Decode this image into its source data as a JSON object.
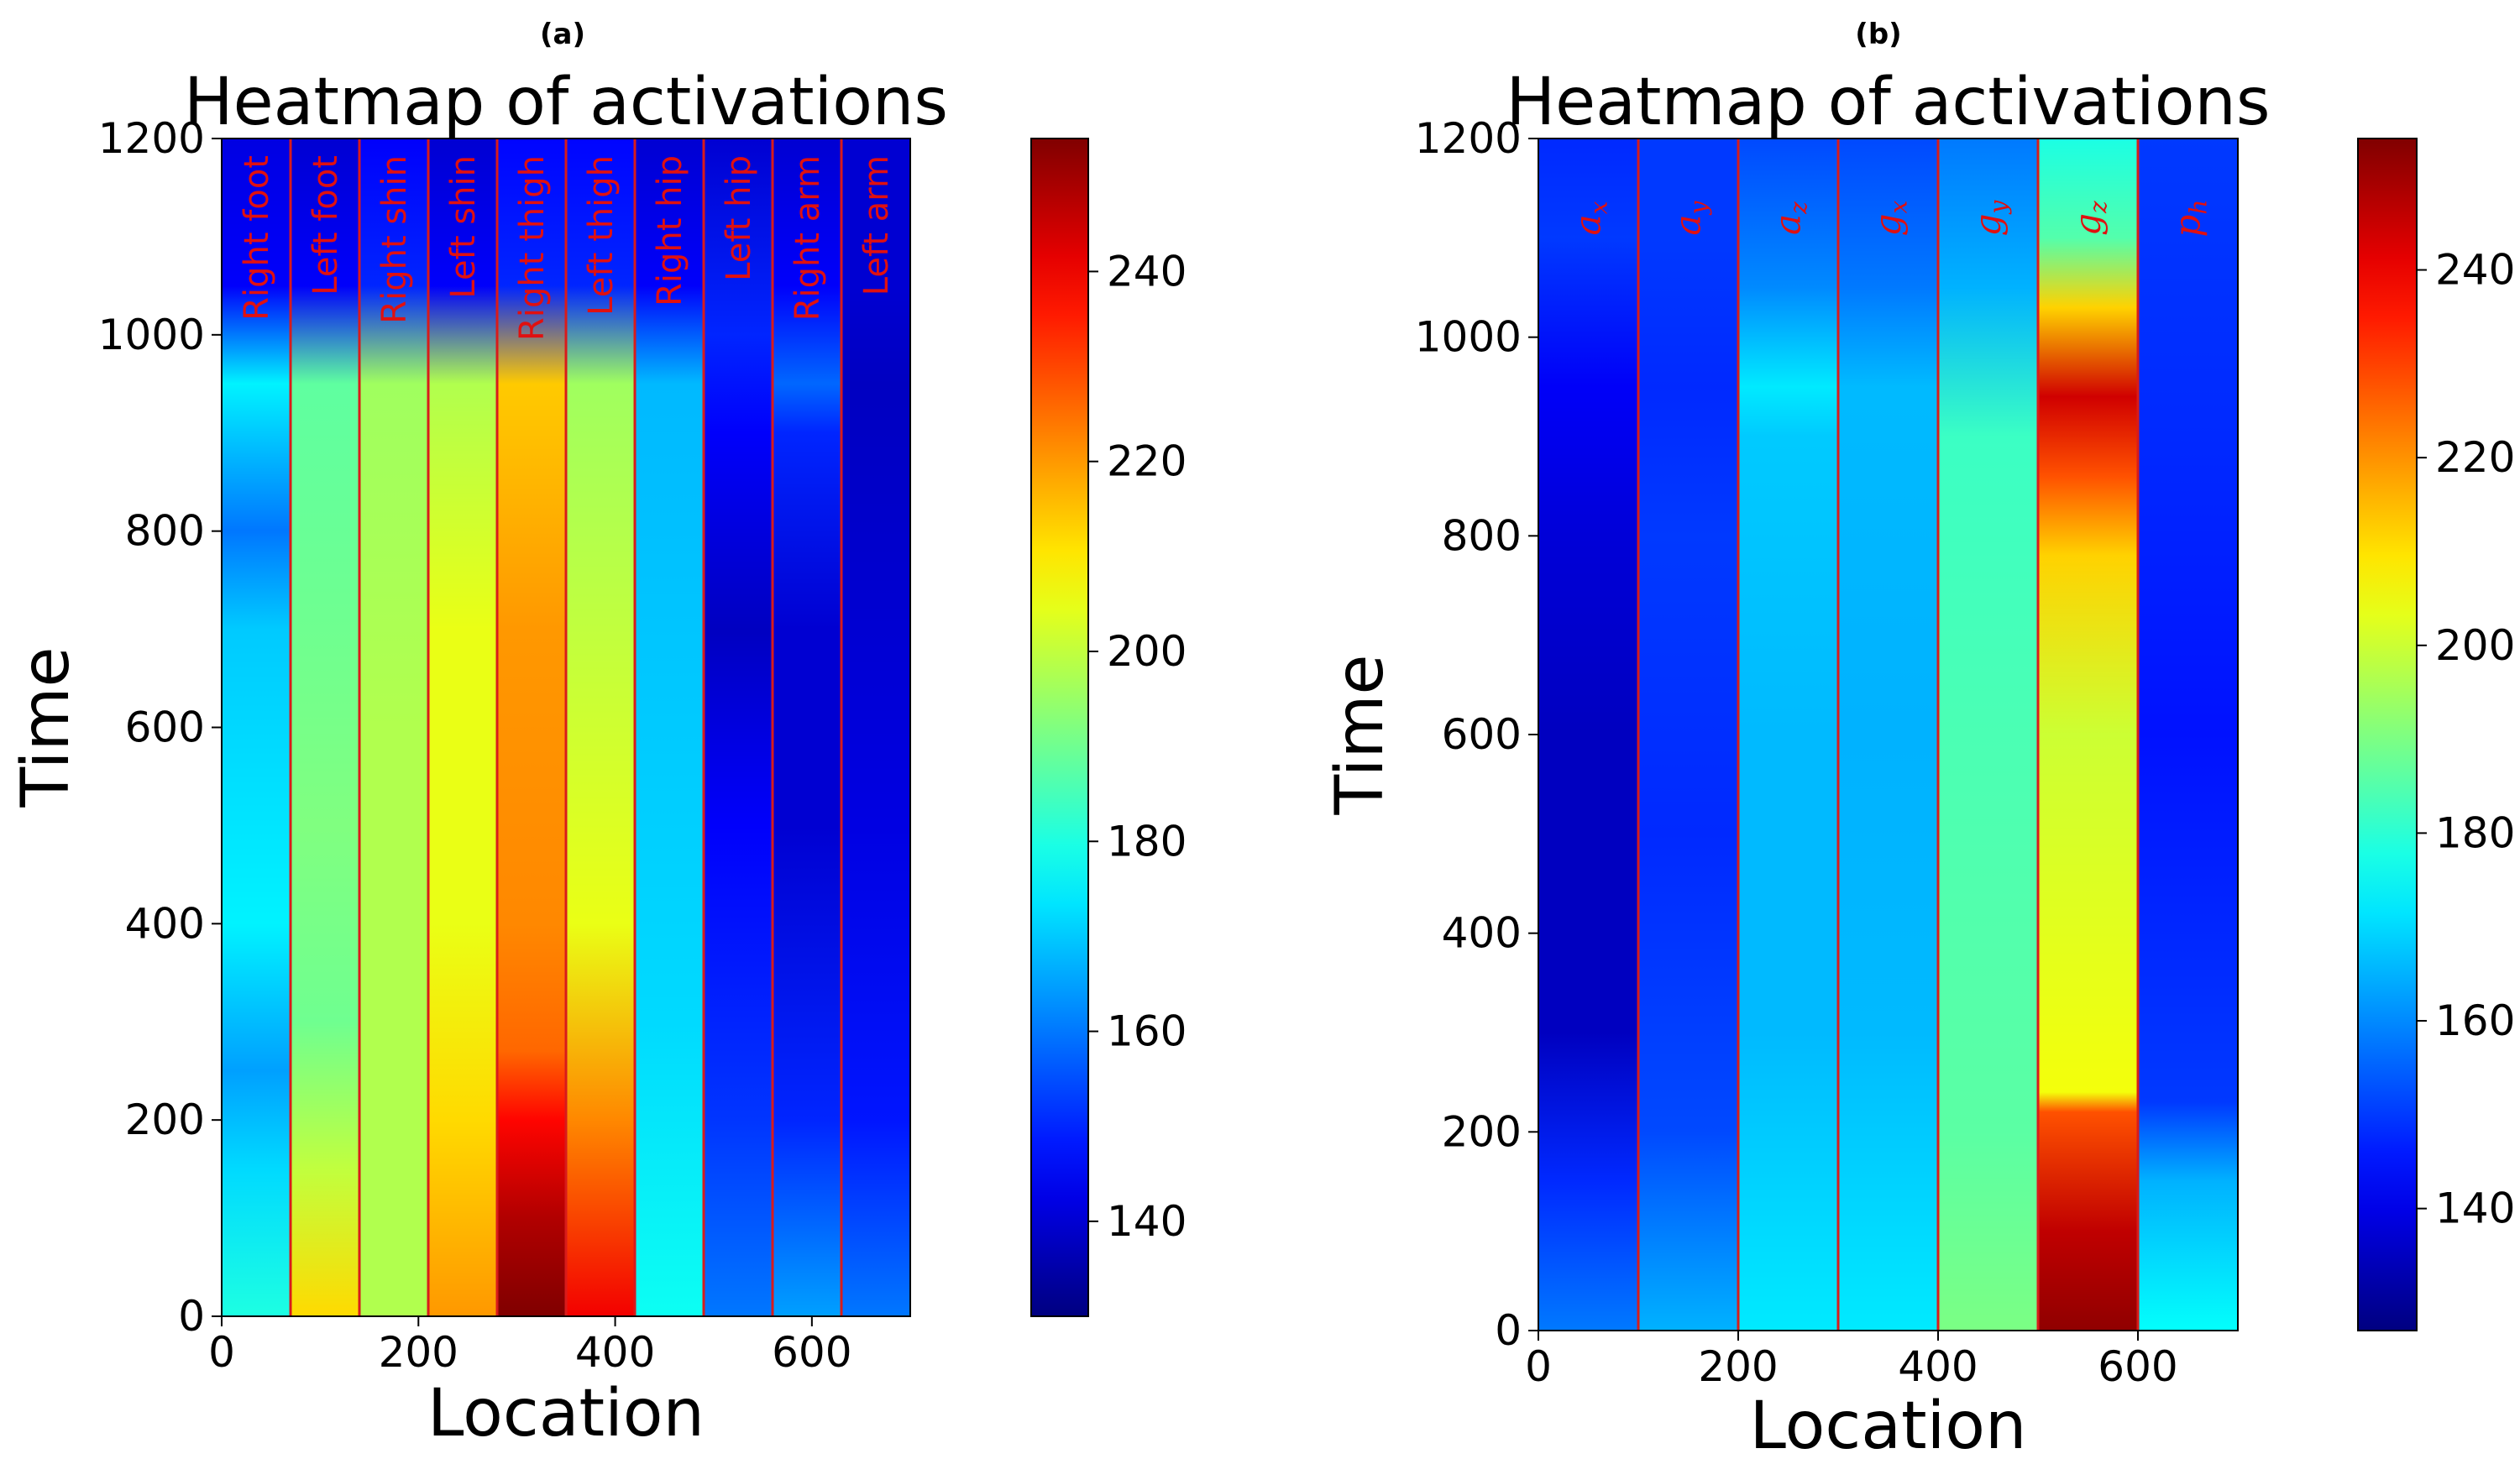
{
  "chart_data": [
    {
      "type": "heatmap",
      "panel": "(a)",
      "title": "Heatmap of activations",
      "xlabel": "Location",
      "ylabel": "Time",
      "xlim": [
        0,
        700
      ],
      "ylim": [
        0,
        1200
      ],
      "xticks": [
        0,
        200,
        400,
        600
      ],
      "yticks": [
        0,
        200,
        400,
        600,
        800,
        1000,
        1200
      ],
      "colorbar": {
        "colormap": "jet",
        "range": [
          130,
          254
        ],
        "ticks": [
          140,
          160,
          180,
          200,
          220,
          240
        ]
      },
      "separators": [
        70,
        140,
        210,
        280,
        350,
        420,
        490,
        560,
        630
      ],
      "regions": [
        {
          "label": "Right  foot",
          "x0": 0,
          "x1": 70,
          "profile": [
            [
              0,
              180
            ],
            [
              150,
              172
            ],
            [
              250,
              165
            ],
            [
              400,
              175
            ],
            [
              700,
              170
            ],
            [
              800,
              160
            ],
            [
              950,
              175
            ],
            [
              1050,
              145
            ],
            [
              1200,
              142
            ]
          ]
        },
        {
          "label": "Left   foot",
          "x0": 70,
          "x1": 140,
          "profile": [
            [
              0,
              212
            ],
            [
              150,
              200
            ],
            [
              300,
              190
            ],
            [
              500,
              192
            ],
            [
              700,
              190
            ],
            [
              950,
              188
            ],
            [
              1050,
              145
            ],
            [
              1200,
              140
            ]
          ]
        },
        {
          "label": "Right shin",
          "x0": 140,
          "x1": 210,
          "profile": [
            [
              0,
              198
            ],
            [
              300,
              198
            ],
            [
              600,
              198
            ],
            [
              950,
              196
            ],
            [
              1050,
              150
            ],
            [
              1200,
              145
            ]
          ]
        },
        {
          "label": "Left   shin",
          "x0": 210,
          "x1": 280,
          "profile": [
            [
              0,
              220
            ],
            [
              200,
              212
            ],
            [
              400,
              205
            ],
            [
              700,
              205
            ],
            [
              950,
              198
            ],
            [
              1050,
              145
            ],
            [
              1200,
              140
            ]
          ]
        },
        {
          "label": "Right thigh",
          "x0": 280,
          "x1": 350,
          "profile": [
            [
              0,
              254
            ],
            [
              100,
              248
            ],
            [
              200,
              238
            ],
            [
              270,
              226
            ],
            [
              400,
              222
            ],
            [
              700,
              220
            ],
            [
              950,
              214
            ],
            [
              1050,
              150
            ],
            [
              1200,
              146
            ]
          ]
        },
        {
          "label": "Left   thigh",
          "x0": 350,
          "x1": 420,
          "profile": [
            [
              0,
              240
            ],
            [
              200,
              222
            ],
            [
              400,
              205
            ],
            [
              700,
              200
            ],
            [
              950,
              196
            ],
            [
              1050,
              150
            ],
            [
              1200,
              146
            ]
          ]
        },
        {
          "label": "Right hip",
          "x0": 420,
          "x1": 490,
          "profile": [
            [
              0,
              178
            ],
            [
              300,
              172
            ],
            [
              600,
              170
            ],
            [
              950,
              168
            ],
            [
              1050,
              145
            ],
            [
              1200,
              140
            ]
          ]
        },
        {
          "label": "Left   hip",
          "x0": 490,
          "x1": 560,
          "profile": [
            [
              0,
              160
            ],
            [
              200,
              152
            ],
            [
              500,
              145
            ],
            [
              700,
              138
            ],
            [
              900,
              145
            ],
            [
              1000,
              150
            ],
            [
              1200,
              140
            ]
          ]
        },
        {
          "label": "Right arm",
          "x0": 560,
          "x1": 630,
          "profile": [
            [
              0,
              165
            ],
            [
              200,
              150
            ],
            [
              500,
              140
            ],
            [
              700,
              140
            ],
            [
              900,
              150
            ],
            [
              950,
              158
            ],
            [
              1050,
              145
            ],
            [
              1200,
              140
            ]
          ]
        },
        {
          "label": "Left   arm",
          "x0": 630,
          "x1": 700,
          "profile": [
            [
              0,
              160
            ],
            [
              200,
              148
            ],
            [
              500,
              142
            ],
            [
              700,
              140
            ],
            [
              950,
              138
            ],
            [
              1050,
              140
            ],
            [
              1200,
              140
            ]
          ]
        }
      ]
    },
    {
      "type": "heatmap",
      "panel": "(b)",
      "title": "Heatmap of activations",
      "xlabel": "Location",
      "ylabel": "Time",
      "xlim": [
        0,
        700
      ],
      "ylim": [
        0,
        1200
      ],
      "xticks": [
        0,
        200,
        400,
        600
      ],
      "yticks": [
        0,
        200,
        400,
        600,
        800,
        1000,
        1200
      ],
      "colorbar": {
        "colormap": "jet",
        "range": [
          127,
          254
        ],
        "ticks": [
          140,
          160,
          180,
          200,
          220,
          240
        ]
      },
      "separators": [
        100,
        200,
        300,
        400,
        500,
        600
      ],
      "regions": [
        {
          "label": "a",
          "sub": "x",
          "x0": 0,
          "x1": 100,
          "profile": [
            [
              0,
              158
            ],
            [
              150,
              148
            ],
            [
              300,
              135
            ],
            [
              600,
              135
            ],
            [
              800,
              138
            ],
            [
              950,
              142
            ],
            [
              1100,
              150
            ],
            [
              1200,
              148
            ]
          ]
        },
        {
          "label": "a",
          "sub": "y",
          "x0": 100,
          "x1": 200,
          "profile": [
            [
              0,
              165
            ],
            [
              200,
              152
            ],
            [
              500,
              148
            ],
            [
              800,
              150
            ],
            [
              950,
              148
            ],
            [
              1100,
              150
            ],
            [
              1200,
              150
            ]
          ]
        },
        {
          "label": "a",
          "sub": "z",
          "x0": 200,
          "x1": 300,
          "profile": [
            [
              0,
              172
            ],
            [
              300,
              166
            ],
            [
              600,
              166
            ],
            [
              900,
              168
            ],
            [
              950,
              172
            ],
            [
              1050,
              160
            ],
            [
              1200,
              152
            ]
          ]
        },
        {
          "label": "g",
          "sub": "x",
          "x0": 300,
          "x1": 400,
          "profile": [
            [
              0,
              172
            ],
            [
              300,
              166
            ],
            [
              600,
              165
            ],
            [
              950,
              166
            ],
            [
              1050,
              158
            ],
            [
              1200,
              152
            ]
          ]
        },
        {
          "label": "g",
          "sub": "y",
          "x0": 400,
          "x1": 500,
          "profile": [
            [
              0,
              190
            ],
            [
              200,
              186
            ],
            [
              600,
              184
            ],
            [
              900,
              182
            ],
            [
              1050,
              165
            ],
            [
              1200,
              158
            ]
          ]
        },
        {
          "label": "g",
          "sub": "z",
          "x0": 500,
          "x1": 600,
          "profile": [
            [
              0,
              252
            ],
            [
              100,
              246
            ],
            [
              220,
              228
            ],
            [
              240,
              205
            ],
            [
              600,
              200
            ],
            [
              780,
              212
            ],
            [
              860,
              228
            ],
            [
              940,
              244
            ],
            [
              1030,
              212
            ],
            [
              1100,
              185
            ],
            [
              1200,
              178
            ]
          ]
        },
        {
          "label": "p",
          "sub": "h",
          "x0": 600,
          "x1": 700,
          "profile": [
            [
              0,
              175
            ],
            [
              150,
              165
            ],
            [
              230,
              150
            ],
            [
              600,
              145
            ],
            [
              900,
              148
            ],
            [
              1200,
              150
            ]
          ]
        }
      ]
    }
  ]
}
